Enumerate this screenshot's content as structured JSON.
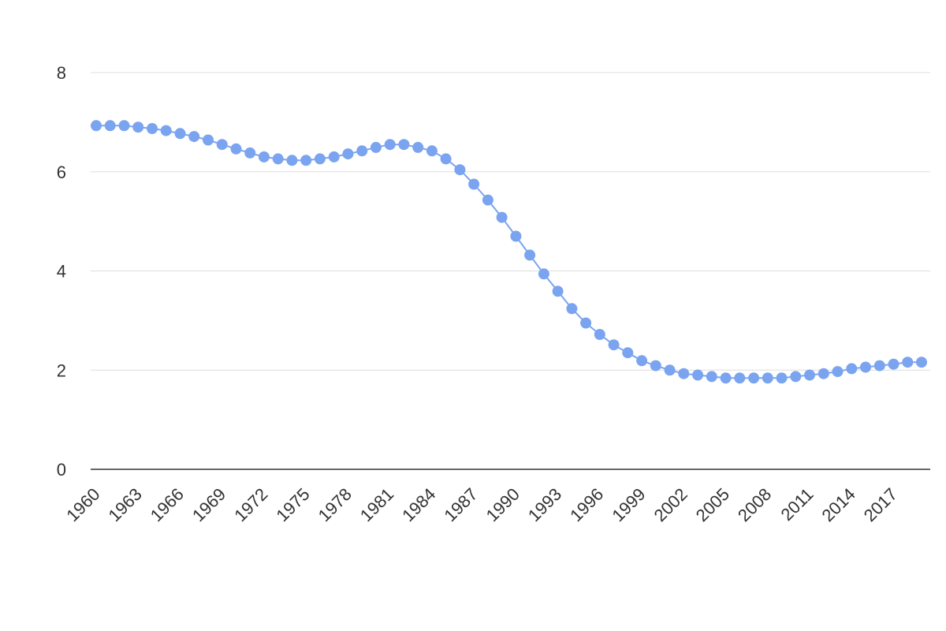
{
  "chart_data": {
    "type": "line",
    "title": "",
    "xlabel": "",
    "ylabel": "",
    "x": [
      1960,
      1961,
      1962,
      1963,
      1964,
      1965,
      1966,
      1967,
      1968,
      1969,
      1970,
      1971,
      1972,
      1973,
      1974,
      1975,
      1976,
      1977,
      1978,
      1979,
      1980,
      1981,
      1982,
      1983,
      1984,
      1985,
      1986,
      1987,
      1988,
      1989,
      1990,
      1991,
      1992,
      1993,
      1994,
      1995,
      1996,
      1997,
      1998,
      1999,
      2000,
      2001,
      2002,
      2003,
      2004,
      2005,
      2006,
      2007,
      2008,
      2009,
      2010,
      2011,
      2012,
      2013,
      2014,
      2015,
      2016,
      2017,
      2018,
      2019
    ],
    "x_tick_labels": [
      "1960",
      "1963",
      "1966",
      "1969",
      "1972",
      "1975",
      "1978",
      "1981",
      "1984",
      "1987",
      "1990",
      "1993",
      "1996",
      "1999",
      "2002",
      "2005",
      "2008",
      "2011",
      "2014",
      "2017"
    ],
    "ylim": [
      0,
      8
    ],
    "y_ticks": [
      0,
      2,
      4,
      6,
      8
    ],
    "grid": true,
    "series": [
      {
        "color": "#7ba4f0",
        "values": [
          6.93,
          6.93,
          6.93,
          6.9,
          6.87,
          6.83,
          6.77,
          6.71,
          6.64,
          6.55,
          6.46,
          6.38,
          6.3,
          6.26,
          6.23,
          6.23,
          6.26,
          6.3,
          6.36,
          6.42,
          6.49,
          6.55,
          6.55,
          6.49,
          6.42,
          6.26,
          6.04,
          5.75,
          5.43,
          5.08,
          4.7,
          4.32,
          3.94,
          3.59,
          3.24,
          2.95,
          2.72,
          2.51,
          2.35,
          2.19,
          2.09,
          2.0,
          1.93,
          1.9,
          1.87,
          1.84,
          1.84,
          1.84,
          1.84,
          1.84,
          1.87,
          1.9,
          1.93,
          1.97,
          2.03,
          2.06,
          2.09,
          2.12,
          2.16,
          2.16
        ]
      }
    ]
  }
}
